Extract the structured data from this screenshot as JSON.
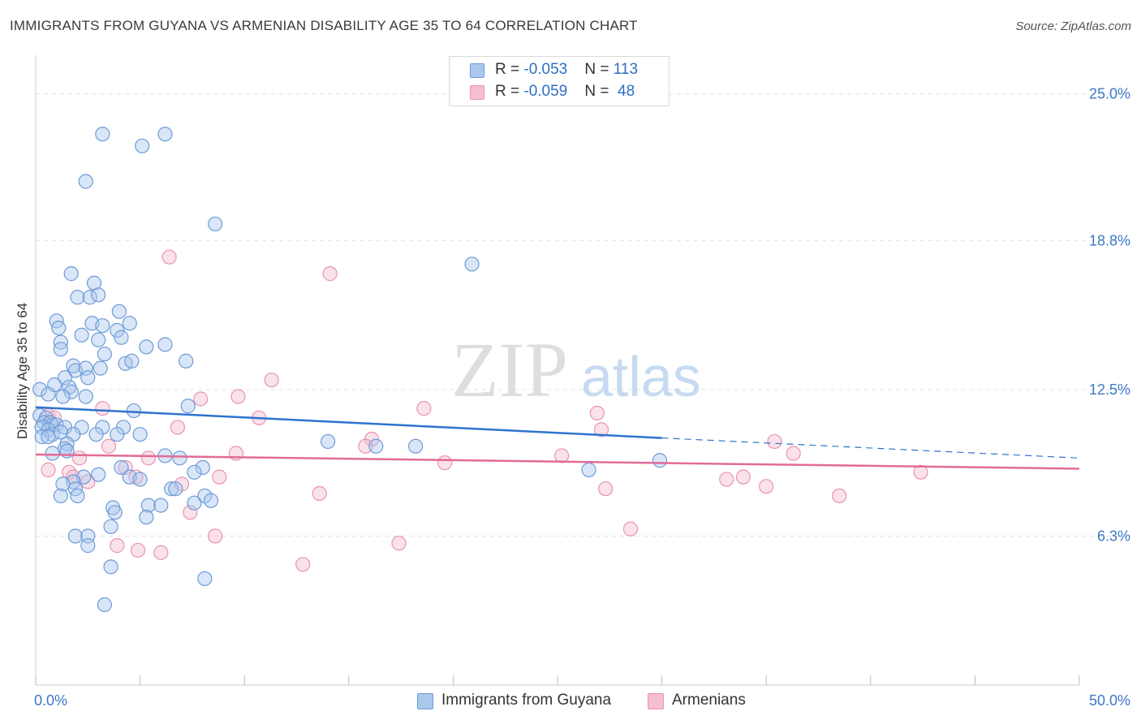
{
  "title": "IMMIGRANTS FROM GUYANA VS ARMENIAN DISABILITY AGE 35 TO 64 CORRELATION CHART",
  "source": "Source: ZipAtlas.com",
  "watermark": {
    "zip": "ZIP",
    "atlas": "atlas"
  },
  "legend": {
    "rows": [
      {
        "r_label": "R = ",
        "r_value": "-0.053",
        "n_label": "N = ",
        "n_value": "113"
      },
      {
        "r_label": "R = ",
        "r_value": "-0.059",
        "n_label": "N = ",
        "n_value": "48"
      }
    ]
  },
  "bottom_legend": {
    "series1": "Immigrants from Guyana",
    "series2": "Armenians"
  },
  "colors": {
    "series1_fill": "#aac8ee",
    "series1_stroke": "#6d9bd8",
    "series1_line": "#2e73cf",
    "series2_fill": "#f5bfd0",
    "series2_stroke": "#e893b0",
    "series2_line": "#e26b97",
    "axis_text": "#3b78c9",
    "grid": "#e3e3e3"
  },
  "chart_data": {
    "type": "scatter",
    "title": "IMMIGRANTS FROM GUYANA VS ARMENIAN DISABILITY AGE 35 TO 64 CORRELATION CHART",
    "xlabel": "",
    "ylabel": "Disability Age 35 to 64",
    "xlim": [
      0,
      50
    ],
    "ylim": [
      0,
      26.5
    ],
    "x_tick_labels": [
      "0.0%",
      "50.0%"
    ],
    "y_ticks": [
      6.3,
      12.5,
      18.8,
      25.0
    ],
    "y_tick_labels": [
      "6.3%",
      "12.5%",
      "18.8%",
      "25.0%"
    ],
    "grid": true,
    "legend_position": "top-center",
    "series": [
      {
        "name": "Immigrants from Guyana",
        "r": -0.053,
        "n": 113,
        "trend": {
          "x_start": 0,
          "y_start": 11.75,
          "x_solid_end": 30,
          "y_solid_end": 10.45,
          "x_end": 50,
          "y_end": 9.6
        },
        "points": [
          [
            3.2,
            23.3
          ],
          [
            5.1,
            22.8
          ],
          [
            6.2,
            23.3
          ],
          [
            2.4,
            21.3
          ],
          [
            8.6,
            19.5
          ],
          [
            20.9,
            17.8
          ],
          [
            1.7,
            17.4
          ],
          [
            2.8,
            17.0
          ],
          [
            2.0,
            16.4
          ],
          [
            2.6,
            16.4
          ],
          [
            3.0,
            16.5
          ],
          [
            4.0,
            15.8
          ],
          [
            1.0,
            15.4
          ],
          [
            2.7,
            15.3
          ],
          [
            3.2,
            15.2
          ],
          [
            4.5,
            15.3
          ],
          [
            1.1,
            15.1
          ],
          [
            3.9,
            15.0
          ],
          [
            2.2,
            14.8
          ],
          [
            3.0,
            14.6
          ],
          [
            4.1,
            14.7
          ],
          [
            1.2,
            14.5
          ],
          [
            1.2,
            14.2
          ],
          [
            5.3,
            14.3
          ],
          [
            6.2,
            14.4
          ],
          [
            3.3,
            14.0
          ],
          [
            7.2,
            13.7
          ],
          [
            4.3,
            13.6
          ],
          [
            4.6,
            13.7
          ],
          [
            1.8,
            13.5
          ],
          [
            1.9,
            13.3
          ],
          [
            2.4,
            13.4
          ],
          [
            3.1,
            13.4
          ],
          [
            1.4,
            13.0
          ],
          [
            2.5,
            13.0
          ],
          [
            0.9,
            12.7
          ],
          [
            1.6,
            12.6
          ],
          [
            1.7,
            12.4
          ],
          [
            0.2,
            12.5
          ],
          [
            0.6,
            12.3
          ],
          [
            1.3,
            12.2
          ],
          [
            2.4,
            12.2
          ],
          [
            7.3,
            11.8
          ],
          [
            4.7,
            11.6
          ],
          [
            0.2,
            11.4
          ],
          [
            0.5,
            11.3
          ],
          [
            0.4,
            11.1
          ],
          [
            0.7,
            11.1
          ],
          [
            0.8,
            11.0
          ],
          [
            1.0,
            11.0
          ],
          [
            0.3,
            10.9
          ],
          [
            0.6,
            10.8
          ],
          [
            1.4,
            10.9
          ],
          [
            2.2,
            10.9
          ],
          [
            3.2,
            10.9
          ],
          [
            4.2,
            10.9
          ],
          [
            0.8,
            10.6
          ],
          [
            1.2,
            10.7
          ],
          [
            1.8,
            10.6
          ],
          [
            2.9,
            10.6
          ],
          [
            3.9,
            10.6
          ],
          [
            5.0,
            10.6
          ],
          [
            0.3,
            10.5
          ],
          [
            0.6,
            10.5
          ],
          [
            1.5,
            10.2
          ],
          [
            1.4,
            10.0
          ],
          [
            1.5,
            9.9
          ],
          [
            0.8,
            9.8
          ],
          [
            6.2,
            9.7
          ],
          [
            6.9,
            9.6
          ],
          [
            8.0,
            9.2
          ],
          [
            7.6,
            9.0
          ],
          [
            4.1,
            9.2
          ],
          [
            3.0,
            8.9
          ],
          [
            4.5,
            8.8
          ],
          [
            2.3,
            8.8
          ],
          [
            5.0,
            8.7
          ],
          [
            1.8,
            8.6
          ],
          [
            1.3,
            8.5
          ],
          [
            1.9,
            8.3
          ],
          [
            6.5,
            8.3
          ],
          [
            6.7,
            8.3
          ],
          [
            8.1,
            8.0
          ],
          [
            8.4,
            7.8
          ],
          [
            1.2,
            8.0
          ],
          [
            2.0,
            8.0
          ],
          [
            5.4,
            7.6
          ],
          [
            6.0,
            7.6
          ],
          [
            7.6,
            7.7
          ],
          [
            3.7,
            7.5
          ],
          [
            3.8,
            7.3
          ],
          [
            5.3,
            7.1
          ],
          [
            3.6,
            6.7
          ],
          [
            1.9,
            6.3
          ],
          [
            2.5,
            6.3
          ],
          [
            2.5,
            5.9
          ],
          [
            3.6,
            5.0
          ],
          [
            8.1,
            4.5
          ],
          [
            3.3,
            3.4
          ],
          [
            14.0,
            10.3
          ],
          [
            16.3,
            10.1
          ],
          [
            18.2,
            10.1
          ],
          [
            26.5,
            9.1
          ],
          [
            29.9,
            9.5
          ]
        ]
      },
      {
        "name": "Armenians",
        "r": -0.059,
        "n": 48,
        "trend": {
          "x_start": 0,
          "y_start": 9.75,
          "x_end": 50,
          "y_end": 9.15
        },
        "points": [
          [
            0.6,
            11.4
          ],
          [
            0.9,
            11.3
          ],
          [
            6.4,
            18.1
          ],
          [
            14.1,
            17.4
          ],
          [
            11.3,
            12.9
          ],
          [
            9.7,
            12.2
          ],
          [
            7.9,
            12.1
          ],
          [
            18.6,
            11.7
          ],
          [
            3.2,
            11.7
          ],
          [
            10.7,
            11.3
          ],
          [
            26.9,
            11.5
          ],
          [
            6.8,
            10.9
          ],
          [
            27.1,
            10.8
          ],
          [
            16.1,
            10.4
          ],
          [
            35.4,
            10.3
          ],
          [
            3.5,
            10.1
          ],
          [
            15.8,
            10.1
          ],
          [
            9.6,
            9.8
          ],
          [
            36.3,
            9.8
          ],
          [
            25.2,
            9.7
          ],
          [
            2.1,
            9.6
          ],
          [
            5.4,
            9.6
          ],
          [
            19.6,
            9.4
          ],
          [
            0.6,
            9.1
          ],
          [
            1.6,
            9.0
          ],
          [
            4.3,
            9.2
          ],
          [
            1.8,
            8.8
          ],
          [
            4.8,
            8.8
          ],
          [
            8.8,
            8.8
          ],
          [
            42.4,
            9.0
          ],
          [
            33.1,
            8.7
          ],
          [
            33.9,
            8.8
          ],
          [
            2.5,
            8.6
          ],
          [
            7.0,
            8.5
          ],
          [
            27.3,
            8.3
          ],
          [
            35.0,
            8.4
          ],
          [
            38.5,
            8.0
          ],
          [
            13.6,
            8.1
          ],
          [
            7.4,
            7.3
          ],
          [
            28.5,
            6.6
          ],
          [
            8.6,
            6.3
          ],
          [
            17.4,
            6.0
          ],
          [
            3.9,
            5.9
          ],
          [
            4.9,
            5.7
          ],
          [
            6.0,
            5.6
          ],
          [
            12.8,
            5.1
          ]
        ]
      }
    ]
  }
}
